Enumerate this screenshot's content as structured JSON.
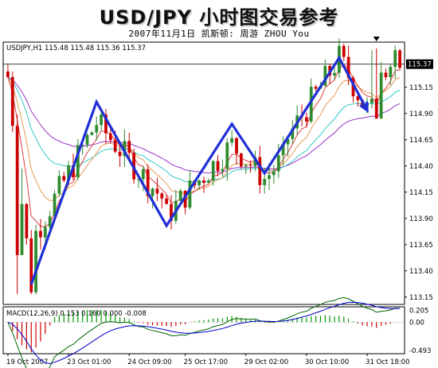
{
  "header": {
    "title": "USD/JPY 小时图交易参考",
    "subtitle": "2007年11月1日  凯斯顿: 周游 ZHOU You"
  },
  "chart_data": [
    {
      "type": "candlestick",
      "panel": "main",
      "label": "USDJPY,H1  115.48 115.48 115.36 115.37",
      "symbol": "USDJPY",
      "timeframe": "H1",
      "ohlc_last": [
        115.48,
        115.48,
        115.36,
        115.37
      ],
      "ylim": [
        113.08,
        115.58
      ],
      "y_ticks": [
        115.15,
        114.9,
        114.65,
        114.4,
        114.15,
        113.9,
        113.65,
        113.4,
        113.15
      ],
      "y_tick_labels": [
        "115.15",
        "114.90",
        "114.65",
        "114.40",
        "114.15",
        "113.90",
        "113.65",
        "113.40",
        "113.15"
      ],
      "current_price": 115.37,
      "current_price_label": "115.37",
      "x_tick_labels": [
        "19 Oct 2007",
        "23 Oct 01:00",
        "24 Oct 09:00",
        "25 Oct 17:00",
        "29 Oct 02:00",
        "30 Oct 10:00",
        "31 Oct 18:00"
      ],
      "wave_path": [
        {
          "bar": 5,
          "price": 113.27
        },
        {
          "bar": 19,
          "price": 115.01
        },
        {
          "bar": 34,
          "price": 113.83
        },
        {
          "bar": 48,
          "price": 114.8
        },
        {
          "bar": 55,
          "price": 114.33
        },
        {
          "bar": 71,
          "price": 115.43
        },
        {
          "bar": 77,
          "price": 114.93
        }
      ],
      "colors": {
        "bull": "#2e8b2e",
        "bear": "#cc0000",
        "wave": "#1f2fd6",
        "ma_red": "#e04040",
        "ma_orange": "#e89a50",
        "ma_cyan": "#30c8c8",
        "ma_purple": "#9933cc"
      }
    },
    {
      "type": "histogram",
      "panel": "macd",
      "label": "MACD(12,26,9) 0.153 0.160 0.000 -0.008",
      "values": {
        "macd": 0.153,
        "signal": 0.16,
        "v3": 0.0,
        "v4": -0.008
      },
      "ylim": [
        -0.55,
        0.27
      ],
      "y_tick_labels": [
        "0.205",
        "0.00",
        "-0.493"
      ],
      "colors": {
        "main": "#006600",
        "signal": "#0000cc",
        "hist_up": "#009900",
        "hist_down": "#cc0000"
      }
    }
  ]
}
